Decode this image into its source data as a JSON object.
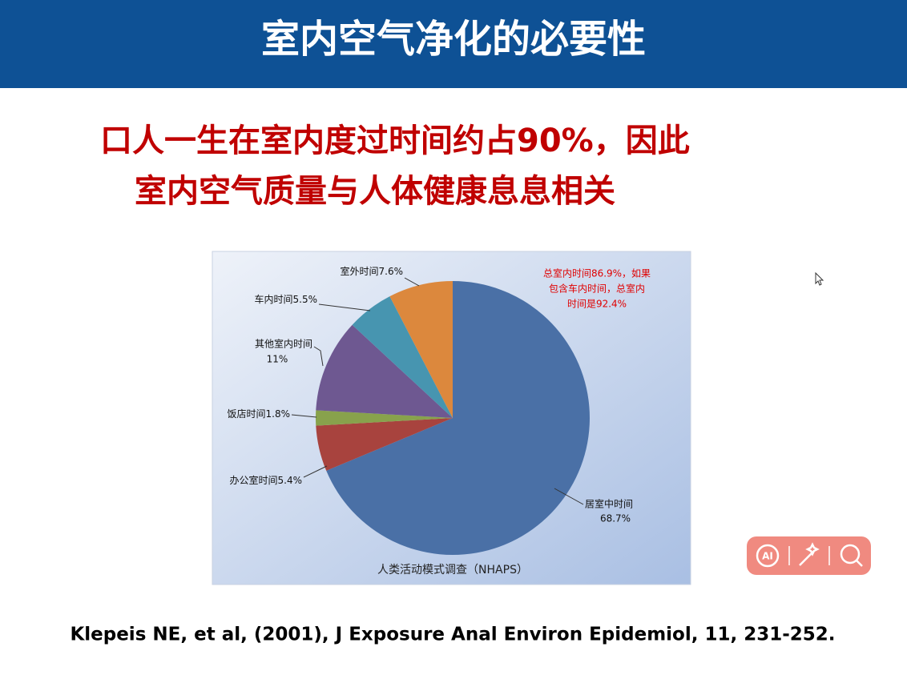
{
  "header": {
    "title": "室内空气净化的必要性"
  },
  "headline": {
    "lines": [
      "口人一生在室内度过时间约占90%，因此",
      "室内空气质量与人体健康息息相关"
    ]
  },
  "chart_data": {
    "type": "pie",
    "categories": [
      "居室中时间",
      "办公室时间",
      "饭店时间",
      "其他室内时间",
      "车内时间",
      "室外时间"
    ],
    "values": [
      68.7,
      5.4,
      1.8,
      11,
      5.5,
      7.6
    ],
    "value_labels": [
      "68.7%",
      "5.4%",
      "1.8%",
      "11%",
      "5.5%",
      "7.6%"
    ],
    "colors": [
      "#4a70a6",
      "#a8433e",
      "#88a24c",
      "#6e5891",
      "#4795b0",
      "#dc883d"
    ],
    "annotation": [
      "总室内时间86.9%，如果",
      "包含车内时间，总室内",
      "时间是92.4%"
    ],
    "caption": "人类活动模式调查（NHAPS）"
  },
  "citation": "Klepeis NE, et al, (2001), J Exposure Anal Environ Epidemiol, 11, 231-252.",
  "toolbar": {
    "ai": "AI"
  }
}
